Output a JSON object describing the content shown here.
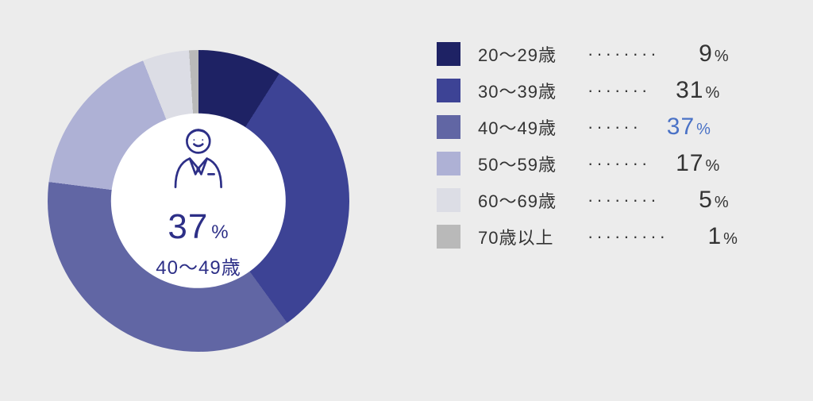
{
  "chart": {
    "type": "donut",
    "background_color": "#ececec",
    "hole_ratio": 0.58,
    "hole_color": "#ffffff",
    "center": {
      "icon": "person-suit-icon",
      "icon_color": "#2d2f87",
      "percent_value": "37",
      "percent_unit": "%",
      "label": "40〜49歳",
      "text_color": "#2d2f87"
    },
    "segments": [
      {
        "label": "20〜29歳",
        "value": 9,
        "color": "#1e2264"
      },
      {
        "label": "30〜39歳",
        "value": 31,
        "color": "#3d4395"
      },
      {
        "label": "40〜49歳",
        "value": 37,
        "color": "#6166a4",
        "highlight": true
      },
      {
        "label": "50〜59歳",
        "value": 17,
        "color": "#aeb1d5"
      },
      {
        "label": "60〜69歳",
        "value": 5,
        "color": "#dcdde5"
      },
      {
        "label": "70歳以上",
        "value": 1,
        "color": "#b9b9b9"
      }
    ]
  },
  "legend": {
    "text_color": "#333333",
    "highlight_color": "#4a72c6",
    "dot_char": "·",
    "unit": "%",
    "rows": [
      {
        "label": "20〜29歳",
        "value": "9",
        "dots": "········",
        "color": "#1e2264"
      },
      {
        "label": "30〜39歳",
        "value": "31",
        "dots": "·······",
        "color": "#3d4395"
      },
      {
        "label": "40〜49歳",
        "value": "37",
        "dots": "······",
        "color": "#6166a4",
        "highlight": true
      },
      {
        "label": "50〜59歳",
        "value": "17",
        "dots": "·······",
        "color": "#aeb1d5"
      },
      {
        "label": "60〜69歳",
        "value": "5",
        "dots": "········",
        "color": "#dcdde5"
      },
      {
        "label": "70歳以上",
        "value": "1",
        "dots": "·········",
        "color": "#b9b9b9"
      }
    ]
  }
}
